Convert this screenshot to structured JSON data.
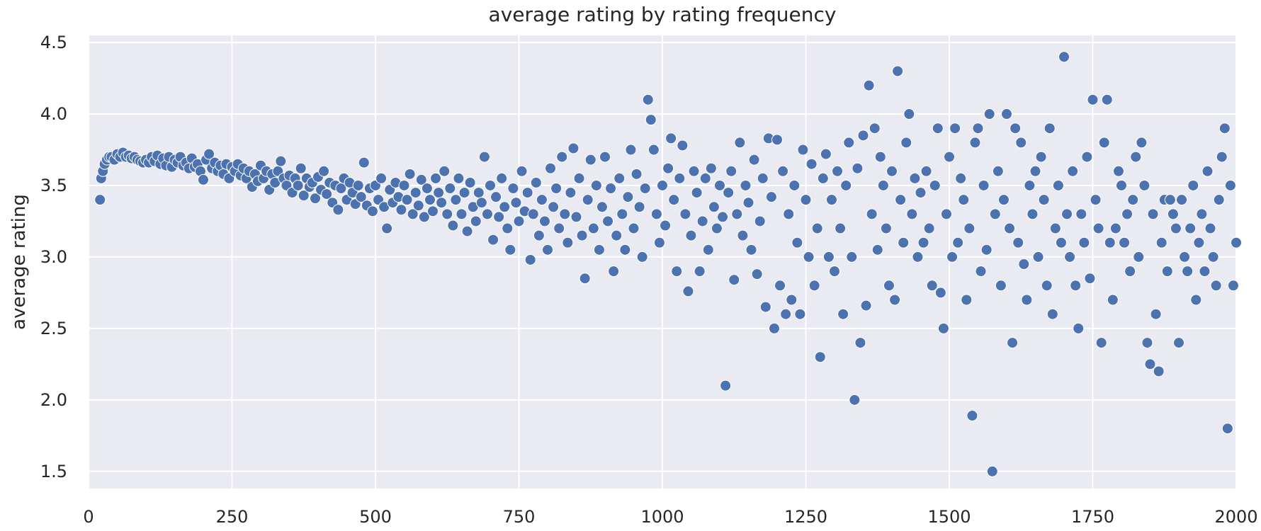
{
  "chart_data": {
    "type": "scatter",
    "title": "average rating by rating frequency",
    "xlabel": "",
    "ylabel": "average rating",
    "xlim": [
      0,
      2000
    ],
    "ylim": [
      1.38,
      4.55
    ],
    "grid": true,
    "legend": "none",
    "x_ticks": [
      "0",
      "250",
      "500",
      "750",
      "1000",
      "1250",
      "1500",
      "1750",
      "2000"
    ],
    "y_ticks": [
      "1.5",
      "2.0",
      "2.5",
      "3.0",
      "3.5",
      "4.0",
      "4.5"
    ],
    "colors": {
      "background": "#eaeaf2",
      "grid": "#ffffff",
      "marker": "#4c72b0",
      "marker_edge": "#ffffff"
    },
    "points": [
      [
        20,
        3.4
      ],
      [
        22,
        3.55
      ],
      [
        25,
        3.6
      ],
      [
        28,
        3.65
      ],
      [
        32,
        3.68
      ],
      [
        36,
        3.7
      ],
      [
        40,
        3.7
      ],
      [
        45,
        3.68
      ],
      [
        50,
        3.72
      ],
      [
        55,
        3.7
      ],
      [
        60,
        3.73
      ],
      [
        65,
        3.7
      ],
      [
        70,
        3.71
      ],
      [
        75,
        3.69
      ],
      [
        80,
        3.7
      ],
      [
        85,
        3.68
      ],
      [
        90,
        3.67
      ],
      [
        95,
        3.66
      ],
      [
        100,
        3.68
      ],
      [
        105,
        3.66
      ],
      [
        110,
        3.7
      ],
      [
        115,
        3.67
      ],
      [
        120,
        3.71
      ],
      [
        125,
        3.65
      ],
      [
        130,
        3.69
      ],
      [
        135,
        3.64
      ],
      [
        140,
        3.7
      ],
      [
        145,
        3.63
      ],
      [
        150,
        3.68
      ],
      [
        155,
        3.66
      ],
      [
        160,
        3.7
      ],
      [
        165,
        3.64
      ],
      [
        170,
        3.66
      ],
      [
        175,
        3.62
      ],
      [
        180,
        3.69
      ],
      [
        185,
        3.63
      ],
      [
        190,
        3.65
      ],
      [
        195,
        3.6
      ],
      [
        200,
        3.54
      ],
      [
        205,
        3.68
      ],
      [
        210,
        3.72
      ],
      [
        215,
        3.62
      ],
      [
        220,
        3.66
      ],
      [
        225,
        3.6
      ],
      [
        230,
        3.64
      ],
      [
        235,
        3.58
      ],
      [
        240,
        3.65
      ],
      [
        245,
        3.55
      ],
      [
        250,
        3.63
      ],
      [
        255,
        3.6
      ],
      [
        260,
        3.65
      ],
      [
        265,
        3.57
      ],
      [
        270,
        3.62
      ],
      [
        275,
        3.55
      ],
      [
        280,
        3.6
      ],
      [
        285,
        3.49
      ],
      [
        290,
        3.58
      ],
      [
        295,
        3.53
      ],
      [
        300,
        3.64
      ],
      [
        305,
        3.55
      ],
      [
        310,
        3.6
      ],
      [
        315,
        3.47
      ],
      [
        320,
        3.58
      ],
      [
        325,
        3.52
      ],
      [
        330,
        3.6
      ],
      [
        335,
        3.67
      ],
      [
        340,
        3.55
      ],
      [
        345,
        3.5
      ],
      [
        350,
        3.57
      ],
      [
        355,
        3.45
      ],
      [
        360,
        3.55
      ],
      [
        365,
        3.5
      ],
      [
        370,
        3.62
      ],
      [
        375,
        3.43
      ],
      [
        380,
        3.55
      ],
      [
        385,
        3.49
      ],
      [
        390,
        3.52
      ],
      [
        395,
        3.41
      ],
      [
        400,
        3.56
      ],
      [
        405,
        3.47
      ],
      [
        410,
        3.6
      ],
      [
        415,
        3.44
      ],
      [
        420,
        3.52
      ],
      [
        425,
        3.38
      ],
      [
        430,
        3.5
      ],
      [
        435,
        3.33
      ],
      [
        440,
        3.48
      ],
      [
        445,
        3.55
      ],
      [
        450,
        3.4
      ],
      [
        455,
        3.52
      ],
      [
        460,
        3.45
      ],
      [
        465,
        3.37
      ],
      [
        470,
        3.5
      ],
      [
        475,
        3.42
      ],
      [
        480,
        3.66
      ],
      [
        485,
        3.36
      ],
      [
        490,
        3.48
      ],
      [
        495,
        3.32
      ],
      [
        500,
        3.5
      ],
      [
        505,
        3.4
      ],
      [
        510,
        3.55
      ],
      [
        515,
        3.35
      ],
      [
        520,
        3.2
      ],
      [
        525,
        3.47
      ],
      [
        530,
        3.38
      ],
      [
        535,
        3.52
      ],
      [
        540,
        3.42
      ],
      [
        545,
        3.33
      ],
      [
        550,
        3.5
      ],
      [
        555,
        3.4
      ],
      [
        560,
        3.58
      ],
      [
        565,
        3.3
      ],
      [
        570,
        3.45
      ],
      [
        575,
        3.36
      ],
      [
        580,
        3.54
      ],
      [
        585,
        3.28
      ],
      [
        590,
        3.48
      ],
      [
        595,
        3.4
      ],
      [
        600,
        3.32
      ],
      [
        605,
        3.55
      ],
      [
        610,
        3.45
      ],
      [
        615,
        3.38
      ],
      [
        620,
        3.6
      ],
      [
        625,
        3.3
      ],
      [
        630,
        3.48
      ],
      [
        635,
        3.22
      ],
      [
        640,
        3.4
      ],
      [
        645,
        3.55
      ],
      [
        650,
        3.3
      ],
      [
        655,
        3.45
      ],
      [
        660,
        3.18
      ],
      [
        665,
        3.52
      ],
      [
        670,
        3.35
      ],
      [
        675,
        3.25
      ],
      [
        680,
        3.45
      ],
      [
        685,
        3.38
      ],
      [
        690,
        3.7
      ],
      [
        695,
        3.3
      ],
      [
        700,
        3.5
      ],
      [
        705,
        3.12
      ],
      [
        710,
        3.42
      ],
      [
        715,
        3.28
      ],
      [
        720,
        3.55
      ],
      [
        725,
        3.35
      ],
      [
        730,
        3.2
      ],
      [
        735,
        3.05
      ],
      [
        740,
        3.48
      ],
      [
        745,
        3.38
      ],
      [
        750,
        3.25
      ],
      [
        755,
        3.6
      ],
      [
        760,
        3.32
      ],
      [
        765,
        3.45
      ],
      [
        770,
        2.98
      ],
      [
        775,
        3.3
      ],
      [
        780,
        3.52
      ],
      [
        785,
        3.15
      ],
      [
        790,
        3.4
      ],
      [
        795,
        3.25
      ],
      [
        800,
        3.05
      ],
      [
        805,
        3.62
      ],
      [
        810,
        3.35
      ],
      [
        815,
        3.48
      ],
      [
        820,
        3.2
      ],
      [
        825,
        3.7
      ],
      [
        830,
        3.3
      ],
      [
        835,
        3.1
      ],
      [
        840,
        3.45
      ],
      [
        845,
        3.76
      ],
      [
        850,
        3.28
      ],
      [
        855,
        3.55
      ],
      [
        860,
        3.15
      ],
      [
        865,
        2.85
      ],
      [
        870,
        3.4
      ],
      [
        875,
        3.68
      ],
      [
        880,
        3.2
      ],
      [
        885,
        3.5
      ],
      [
        890,
        3.05
      ],
      [
        895,
        3.35
      ],
      [
        900,
        3.7
      ],
      [
        905,
        3.25
      ],
      [
        910,
        3.48
      ],
      [
        915,
        2.9
      ],
      [
        920,
        3.15
      ],
      [
        925,
        3.55
      ],
      [
        930,
        3.3
      ],
      [
        935,
        3.05
      ],
      [
        940,
        3.42
      ],
      [
        945,
        3.75
      ],
      [
        950,
        3.2
      ],
      [
        955,
        3.58
      ],
      [
        960,
        3.35
      ],
      [
        965,
        3.0
      ],
      [
        970,
        3.48
      ],
      [
        975,
        4.1
      ],
      [
        980,
        3.96
      ],
      [
        985,
        3.75
      ],
      [
        990,
        3.3
      ],
      [
        995,
        3.1
      ],
      [
        1000,
        3.5
      ],
      [
        1005,
        3.22
      ],
      [
        1010,
        3.62
      ],
      [
        1015,
        3.83
      ],
      [
        1020,
        3.4
      ],
      [
        1025,
        2.9
      ],
      [
        1030,
        3.55
      ],
      [
        1035,
        3.78
      ],
      [
        1040,
        3.3
      ],
      [
        1045,
        2.76
      ],
      [
        1050,
        3.15
      ],
      [
        1055,
        3.6
      ],
      [
        1060,
        3.45
      ],
      [
        1065,
        2.9
      ],
      [
        1070,
        3.25
      ],
      [
        1075,
        3.55
      ],
      [
        1080,
        3.05
      ],
      [
        1085,
        3.62
      ],
      [
        1090,
        3.35
      ],
      [
        1095,
        3.2
      ],
      [
        1100,
        3.5
      ],
      [
        1105,
        3.28
      ],
      [
        1110,
        2.1
      ],
      [
        1115,
        3.45
      ],
      [
        1120,
        3.6
      ],
      [
        1125,
        2.84
      ],
      [
        1130,
        3.3
      ],
      [
        1135,
        3.8
      ],
      [
        1140,
        3.15
      ],
      [
        1145,
        3.5
      ],
      [
        1150,
        3.38
      ],
      [
        1155,
        3.05
      ],
      [
        1160,
        3.68
      ],
      [
        1165,
        2.88
      ],
      [
        1170,
        3.25
      ],
      [
        1175,
        3.55
      ],
      [
        1180,
        2.65
      ],
      [
        1185,
        3.83
      ],
      [
        1190,
        3.42
      ],
      [
        1195,
        2.5
      ],
      [
        1200,
        3.82
      ],
      [
        1205,
        2.8
      ],
      [
        1210,
        3.6
      ],
      [
        1215,
        2.6
      ],
      [
        1220,
        3.3
      ],
      [
        1225,
        2.7
      ],
      [
        1230,
        3.5
      ],
      [
        1235,
        3.1
      ],
      [
        1240,
        2.6
      ],
      [
        1245,
        3.75
      ],
      [
        1250,
        3.4
      ],
      [
        1255,
        3.0
      ],
      [
        1260,
        3.65
      ],
      [
        1265,
        2.8
      ],
      [
        1270,
        3.2
      ],
      [
        1275,
        2.3
      ],
      [
        1280,
        3.55
      ],
      [
        1285,
        3.72
      ],
      [
        1290,
        3.0
      ],
      [
        1295,
        3.4
      ],
      [
        1300,
        2.9
      ],
      [
        1305,
        3.6
      ],
      [
        1310,
        3.2
      ],
      [
        1315,
        2.6
      ],
      [
        1320,
        3.5
      ],
      [
        1325,
        3.8
      ],
      [
        1330,
        3.0
      ],
      [
        1335,
        2.0
      ],
      [
        1340,
        3.62
      ],
      [
        1345,
        2.4
      ],
      [
        1350,
        3.85
      ],
      [
        1355,
        2.66
      ],
      [
        1360,
        4.2
      ],
      [
        1365,
        3.3
      ],
      [
        1370,
        3.9
      ],
      [
        1375,
        3.05
      ],
      [
        1380,
        3.7
      ],
      [
        1385,
        3.5
      ],
      [
        1390,
        3.2
      ],
      [
        1395,
        2.8
      ],
      [
        1400,
        3.6
      ],
      [
        1405,
        2.7
      ],
      [
        1410,
        4.3
      ],
      [
        1415,
        3.4
      ],
      [
        1420,
        3.1
      ],
      [
        1425,
        3.8
      ],
      [
        1430,
        4.0
      ],
      [
        1435,
        3.3
      ],
      [
        1440,
        3.55
      ],
      [
        1445,
        3.0
      ],
      [
        1450,
        3.45
      ],
      [
        1455,
        3.1
      ],
      [
        1460,
        3.6
      ],
      [
        1465,
        3.2
      ],
      [
        1470,
        2.8
      ],
      [
        1475,
        3.5
      ],
      [
        1480,
        3.9
      ],
      [
        1485,
        2.75
      ],
      [
        1490,
        2.5
      ],
      [
        1495,
        3.3
      ],
      [
        1500,
        3.7
      ],
      [
        1505,
        3.0
      ],
      [
        1510,
        3.9
      ],
      [
        1515,
        3.1
      ],
      [
        1520,
        3.55
      ],
      [
        1525,
        3.4
      ],
      [
        1530,
        2.7
      ],
      [
        1535,
        3.2
      ],
      [
        1540,
        1.89
      ],
      [
        1545,
        3.8
      ],
      [
        1550,
        3.9
      ],
      [
        1555,
        2.9
      ],
      [
        1560,
        3.5
      ],
      [
        1565,
        3.05
      ],
      [
        1570,
        4.0
      ],
      [
        1575,
        1.5
      ],
      [
        1580,
        3.3
      ],
      [
        1585,
        3.6
      ],
      [
        1590,
        2.8
      ],
      [
        1595,
        3.4
      ],
      [
        1600,
        4.0
      ],
      [
        1605,
        3.2
      ],
      [
        1610,
        2.4
      ],
      [
        1615,
        3.9
      ],
      [
        1620,
        3.1
      ],
      [
        1625,
        3.8
      ],
      [
        1630,
        2.95
      ],
      [
        1635,
        2.7
      ],
      [
        1640,
        3.5
      ],
      [
        1645,
        3.3
      ],
      [
        1650,
        3.6
      ],
      [
        1655,
        3.0
      ],
      [
        1660,
        3.7
      ],
      [
        1665,
        3.4
      ],
      [
        1670,
        2.8
      ],
      [
        1675,
        3.9
      ],
      [
        1680,
        2.6
      ],
      [
        1685,
        3.2
      ],
      [
        1690,
        3.5
      ],
      [
        1695,
        3.1
      ],
      [
        1700,
        4.4
      ],
      [
        1705,
        3.3
      ],
      [
        1710,
        3.0
      ],
      [
        1715,
        3.6
      ],
      [
        1720,
        2.8
      ],
      [
        1725,
        2.5
      ],
      [
        1730,
        3.3
      ],
      [
        1735,
        3.1
      ],
      [
        1740,
        3.7
      ],
      [
        1745,
        2.85
      ],
      [
        1750,
        4.1
      ],
      [
        1755,
        3.4
      ],
      [
        1760,
        3.2
      ],
      [
        1765,
        2.4
      ],
      [
        1770,
        3.8
      ],
      [
        1775,
        4.1
      ],
      [
        1780,
        3.1
      ],
      [
        1785,
        2.7
      ],
      [
        1790,
        3.2
      ],
      [
        1795,
        3.6
      ],
      [
        1800,
        3.5
      ],
      [
        1805,
        3.1
      ],
      [
        1810,
        3.3
      ],
      [
        1815,
        2.9
      ],
      [
        1820,
        3.4
      ],
      [
        1825,
        3.7
      ],
      [
        1830,
        3.0
      ],
      [
        1835,
        3.8
      ],
      [
        1840,
        3.5
      ],
      [
        1845,
        2.4
      ],
      [
        1850,
        2.25
      ],
      [
        1855,
        3.3
      ],
      [
        1860,
        2.6
      ],
      [
        1865,
        2.2
      ],
      [
        1870,
        3.1
      ],
      [
        1875,
        3.4
      ],
      [
        1880,
        2.9
      ],
      [
        1885,
        3.4
      ],
      [
        1890,
        3.3
      ],
      [
        1895,
        3.2
      ],
      [
        1900,
        2.4
      ],
      [
        1905,
        3.4
      ],
      [
        1910,
        3.0
      ],
      [
        1915,
        2.9
      ],
      [
        1920,
        3.2
      ],
      [
        1925,
        3.5
      ],
      [
        1930,
        2.7
      ],
      [
        1935,
        3.1
      ],
      [
        1940,
        3.3
      ],
      [
        1945,
        2.9
      ],
      [
        1950,
        3.6
      ],
      [
        1955,
        3.2
      ],
      [
        1960,
        3.0
      ],
      [
        1965,
        2.8
      ],
      [
        1970,
        3.4
      ],
      [
        1975,
        3.7
      ],
      [
        1980,
        3.9
      ],
      [
        1985,
        1.8
      ],
      [
        1990,
        3.5
      ],
      [
        1995,
        2.8
      ],
      [
        2000,
        3.1
      ]
    ]
  }
}
